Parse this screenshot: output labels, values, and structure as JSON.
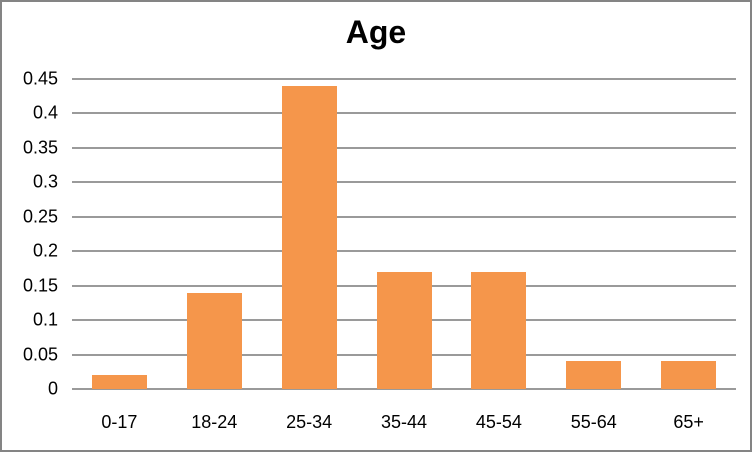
{
  "chart_data": {
    "type": "bar",
    "title": "Age",
    "categories": [
      "0-17",
      "18-24",
      "25-34",
      "35-44",
      "45-54",
      "55-64",
      "65+"
    ],
    "values": [
      0.02,
      0.14,
      0.44,
      0.17,
      0.17,
      0.04,
      0.04
    ],
    "xlabel": "",
    "ylabel": "",
    "ylim": [
      0,
      0.45
    ],
    "ytick_step": 0.05,
    "ytick_labels": [
      "0.45",
      "0.4",
      "0.35",
      "0.3",
      "0.25",
      "0.2",
      "0.15",
      "0.1",
      "0.05",
      "0"
    ],
    "grid": "horizontal",
    "legend": "none",
    "colors": {
      "bar_fill": "#F5964B",
      "gridline": "#9A9A9A",
      "frame_border": "#848484",
      "text": "#000000",
      "background": "#FFFFFF"
    }
  }
}
